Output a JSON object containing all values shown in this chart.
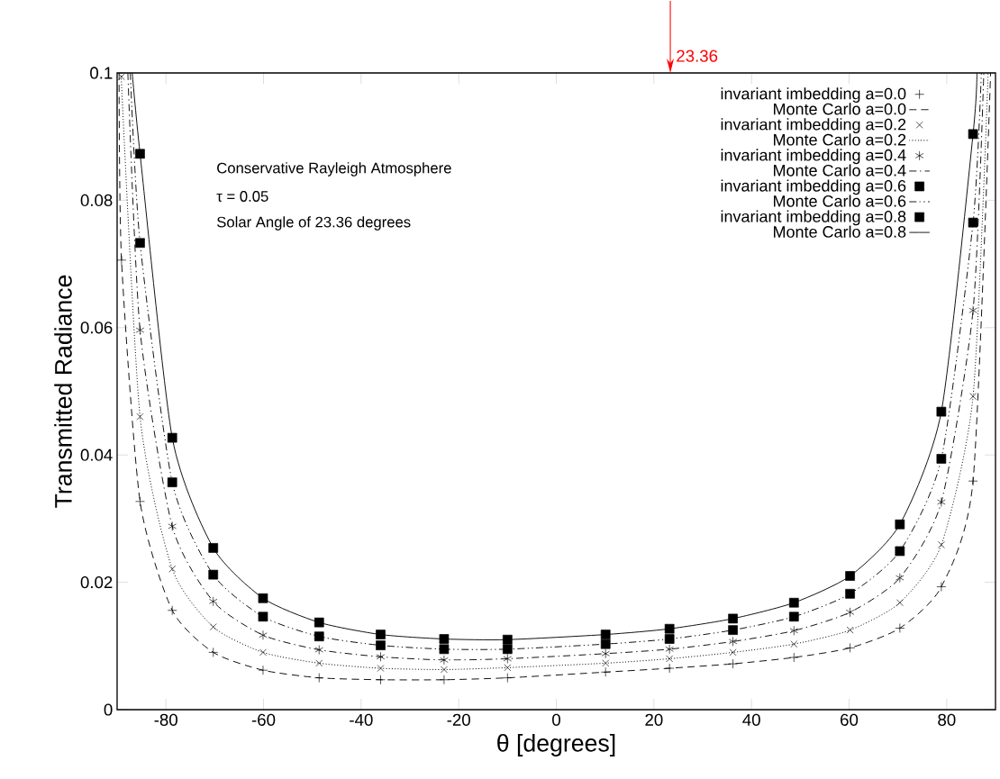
{
  "chart_data": {
    "type": "scatter",
    "xlabel": "θ [degrees]",
    "ylabel": "Transmitted Radiance",
    "xlim": [
      -90,
      90
    ],
    "ylim": [
      0,
      0.1
    ],
    "xticks": [
      -80,
      -60,
      -40,
      -20,
      0,
      20,
      40,
      60,
      80
    ],
    "yticks": [
      0,
      0.02,
      0.04,
      0.06,
      0.08,
      0.1
    ],
    "grid": false,
    "legend": "top right",
    "x": [
      -89.1,
      -85.3,
      -78.7,
      -70.3,
      -60.1,
      -48.6,
      -36.0,
      -23.0,
      -10.0,
      10.1,
      23.2,
      36.2,
      48.7,
      60.2,
      70.4,
      78.9,
      85.4
    ],
    "annotations": [
      "Conservative Rayleigh Atmosphere",
      "τ = 0.05",
      "Solar Angle of 23.36 degrees"
    ],
    "ref_lines": [
      {
        "axis": "x",
        "value": 23.36,
        "label": "23.36",
        "color": "#ff0000"
      }
    ],
    "series": [
      {
        "name": "invariant imbedding  a=0.0",
        "marker": "cross",
        "color": "#000000",
        "values": [
          0.0706,
          0.0327,
          0.0156,
          0.009,
          0.0062,
          0.005,
          0.0047,
          0.0047,
          0.005,
          0.0059,
          0.0065,
          0.0072,
          0.0082,
          0.0097,
          0.0128,
          0.0193,
          0.0359
        ]
      },
      {
        "name": "Monte Carlo a=0.0",
        "type": "line",
        "line_style": "dashed",
        "color": "#000000",
        "x": [
          -89.6,
          -89.1,
          -85.3,
          -78.7,
          -70.3,
          -60.1,
          -48.6,
          -36.0,
          -23.0,
          -10.0,
          10.1,
          23.2,
          36.2,
          48.7,
          60.2,
          70.4,
          78.9,
          85.4,
          89.0
        ],
        "values": [
          0.1,
          0.0706,
          0.0327,
          0.0156,
          0.009,
          0.0062,
          0.005,
          0.0047,
          0.0047,
          0.005,
          0.0059,
          0.0065,
          0.0072,
          0.0082,
          0.0097,
          0.0128,
          0.0193,
          0.0359,
          0.1
        ]
      },
      {
        "name": "invariant imbedding  a=0.2",
        "marker": "cross",
        "color": "#000000",
        "values": [
          0.0994,
          0.046,
          0.0221,
          0.013,
          0.009,
          0.0073,
          0.0065,
          0.0063,
          0.0066,
          0.0073,
          0.008,
          0.009,
          0.0103,
          0.0125,
          0.0168,
          0.0259,
          0.0492
        ]
      },
      {
        "name": "Monte Carlo a=0.2",
        "type": "line",
        "line_style": "dotted",
        "color": "#000000",
        "x": [
          -89.2,
          -85.3,
          -78.7,
          -70.3,
          -60.1,
          -48.6,
          -36.0,
          -23.0,
          -10.0,
          10.1,
          23.2,
          36.2,
          48.7,
          60.2,
          70.4,
          78.9,
          85.4,
          88.5
        ],
        "values": [
          0.1,
          0.046,
          0.0221,
          0.013,
          0.009,
          0.0073,
          0.0065,
          0.0063,
          0.0066,
          0.0073,
          0.008,
          0.009,
          0.0103,
          0.0125,
          0.0168,
          0.0259,
          0.0492,
          0.1
        ]
      },
      {
        "name": "invariant imbedding  a=0.4",
        "marker": "cross",
        "color": "#000000",
        "values": [
          null,
          0.0596,
          0.0288,
          0.017,
          0.0117,
          0.0094,
          0.0083,
          0.0078,
          0.008,
          0.0088,
          0.0095,
          0.0107,
          0.0124,
          0.0153,
          0.0207,
          0.0326,
          0.0627
        ]
      },
      {
        "name": "Monte Carlo a=0.4",
        "type": "line",
        "line_style": "dashdot",
        "color": "#000000",
        "x": [
          -87.8,
          -85.3,
          -78.7,
          -70.3,
          -60.1,
          -48.6,
          -36.0,
          -23.0,
          -10.0,
          10.1,
          23.2,
          36.2,
          48.7,
          60.2,
          70.4,
          78.9,
          85.4,
          87.6
        ],
        "values": [
          0.1,
          0.0596,
          0.0288,
          0.017,
          0.0117,
          0.0094,
          0.0083,
          0.0078,
          0.008,
          0.0088,
          0.0095,
          0.0107,
          0.0124,
          0.0153,
          0.0207,
          0.0326,
          0.0627,
          0.1
        ]
      },
      {
        "name": "invariant imbedding  a=0.6",
        "marker": "square",
        "color": "#000000",
        "values": [
          null,
          0.0733,
          0.0357,
          0.0212,
          0.0146,
          0.0115,
          0.0101,
          0.0095,
          0.0095,
          0.0103,
          0.0111,
          0.0125,
          0.0146,
          0.0182,
          0.0249,
          0.0394,
          0.0765
        ]
      },
      {
        "name": "Monte Carlo a=0.6",
        "type": "line",
        "line_style": "dashdotdot",
        "color": "#000000",
        "x": [
          -87.3,
          -85.3,
          -78.7,
          -70.3,
          -60.1,
          -48.6,
          -36.0,
          -23.0,
          -10.0,
          10.1,
          23.2,
          36.2,
          48.7,
          60.2,
          70.4,
          78.9,
          85.4,
          87.1
        ],
        "values": [
          0.1,
          0.0733,
          0.0357,
          0.0212,
          0.0146,
          0.0115,
          0.0101,
          0.0095,
          0.0095,
          0.0103,
          0.0111,
          0.0125,
          0.0146,
          0.0182,
          0.0249,
          0.0394,
          0.0765,
          0.1
        ]
      },
      {
        "name": "invariant imbedding  a=0.8",
        "marker": "square",
        "color": "#000000",
        "values": [
          null,
          0.0873,
          0.0427,
          0.0254,
          0.0175,
          0.0137,
          0.0118,
          0.0111,
          0.011,
          0.0118,
          0.0127,
          0.0143,
          0.0168,
          0.021,
          0.0291,
          0.0468,
          0.0904
        ]
      },
      {
        "name": "Monte Carlo a=0.8",
        "type": "line",
        "line_style": "solid",
        "color": "#000000",
        "x": [
          -86.9,
          -85.3,
          -78.7,
          -70.3,
          -60.1,
          -48.6,
          -36.0,
          -23.0,
          -10.0,
          10.1,
          23.2,
          36.2,
          48.7,
          60.2,
          70.4,
          78.9,
          85.4,
          86.2
        ],
        "values": [
          0.1,
          0.0873,
          0.0427,
          0.0254,
          0.0175,
          0.0137,
          0.0118,
          0.0111,
          0.011,
          0.0118,
          0.0127,
          0.0143,
          0.0168,
          0.021,
          0.0291,
          0.0468,
          0.0904,
          0.1
        ]
      }
    ]
  }
}
